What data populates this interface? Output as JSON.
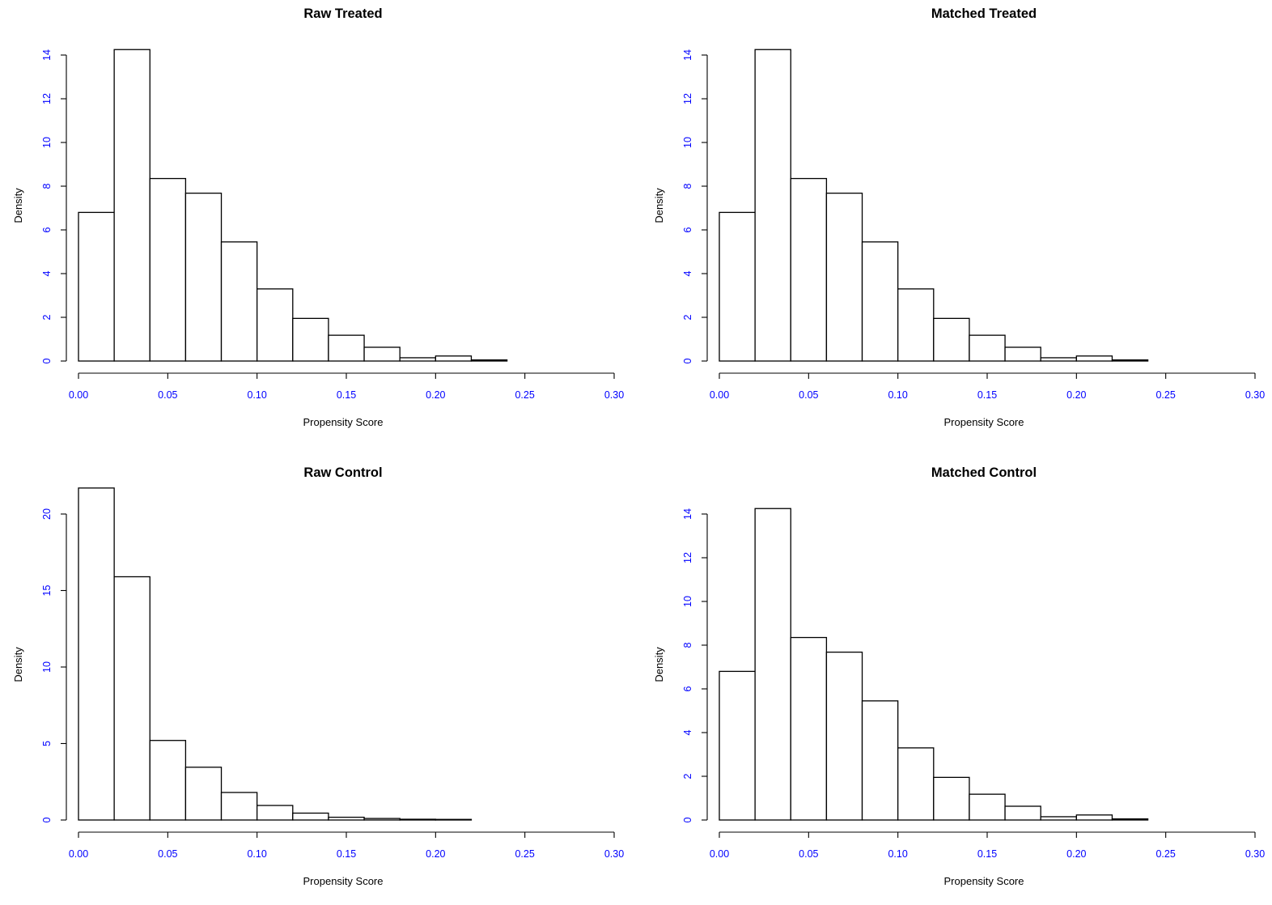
{
  "chart_data": [
    {
      "type": "bar",
      "title": "Raw Treated",
      "xlabel": "Propensity Score",
      "ylabel": "Density",
      "xlim": [
        0,
        0.3
      ],
      "ylim": [
        0,
        14
      ],
      "x_ticks": [
        "0.00",
        "0.05",
        "0.10",
        "0.15",
        "0.20",
        "0.25",
        "0.30"
      ],
      "y_ticks": [
        "0",
        "2",
        "4",
        "6",
        "8",
        "10",
        "12",
        "14"
      ],
      "bin_edges": [
        0,
        0.02,
        0.04,
        0.06,
        0.08,
        0.1,
        0.12,
        0.14,
        0.16,
        0.18,
        0.2,
        0.22,
        0.24
      ],
      "values": [
        6.8,
        14.25,
        8.35,
        7.68,
        5.45,
        3.3,
        1.95,
        1.18,
        0.63,
        0.15,
        0.23,
        0.05
      ]
    },
    {
      "type": "bar",
      "title": "Matched Treated",
      "xlabel": "Propensity Score",
      "ylabel": "Density",
      "xlim": [
        0,
        0.3
      ],
      "ylim": [
        0,
        14
      ],
      "x_ticks": [
        "0.00",
        "0.05",
        "0.10",
        "0.15",
        "0.20",
        "0.25",
        "0.30"
      ],
      "y_ticks": [
        "0",
        "2",
        "4",
        "6",
        "8",
        "10",
        "12",
        "14"
      ],
      "bin_edges": [
        0,
        0.02,
        0.04,
        0.06,
        0.08,
        0.1,
        0.12,
        0.14,
        0.16,
        0.18,
        0.2,
        0.22,
        0.24
      ],
      "values": [
        6.8,
        14.25,
        8.35,
        7.68,
        5.45,
        3.3,
        1.95,
        1.18,
        0.63,
        0.15,
        0.23,
        0.05
      ]
    },
    {
      "type": "bar",
      "title": "Raw Control",
      "xlabel": "Propensity Score",
      "ylabel": "Density",
      "xlim": [
        0,
        0.3
      ],
      "ylim": [
        0,
        20
      ],
      "x_ticks": [
        "0.00",
        "0.05",
        "0.10",
        "0.15",
        "0.20",
        "0.25",
        "0.30"
      ],
      "y_ticks": [
        "0",
        "5",
        "10",
        "15",
        "20"
      ],
      "bin_edges": [
        0,
        0.02,
        0.04,
        0.06,
        0.08,
        0.1,
        0.12,
        0.14,
        0.16,
        0.18,
        0.2,
        0.22
      ],
      "values": [
        21.7,
        15.9,
        5.2,
        3.45,
        1.8,
        0.95,
        0.45,
        0.18,
        0.1,
        0.05,
        0.04
      ]
    },
    {
      "type": "bar",
      "title": "Matched Control",
      "xlabel": "Propensity Score",
      "ylabel": "Density",
      "xlim": [
        0,
        0.3
      ],
      "ylim": [
        0,
        14
      ],
      "x_ticks": [
        "0.00",
        "0.05",
        "0.10",
        "0.15",
        "0.20",
        "0.25",
        "0.30"
      ],
      "y_ticks": [
        "0",
        "2",
        "4",
        "6",
        "8",
        "10",
        "12",
        "14"
      ],
      "bin_edges": [
        0,
        0.02,
        0.04,
        0.06,
        0.08,
        0.1,
        0.12,
        0.14,
        0.16,
        0.18,
        0.2,
        0.22,
        0.24
      ],
      "values": [
        6.8,
        14.25,
        8.35,
        7.68,
        5.45,
        3.3,
        1.95,
        1.18,
        0.63,
        0.15,
        0.23,
        0.05
      ]
    }
  ]
}
